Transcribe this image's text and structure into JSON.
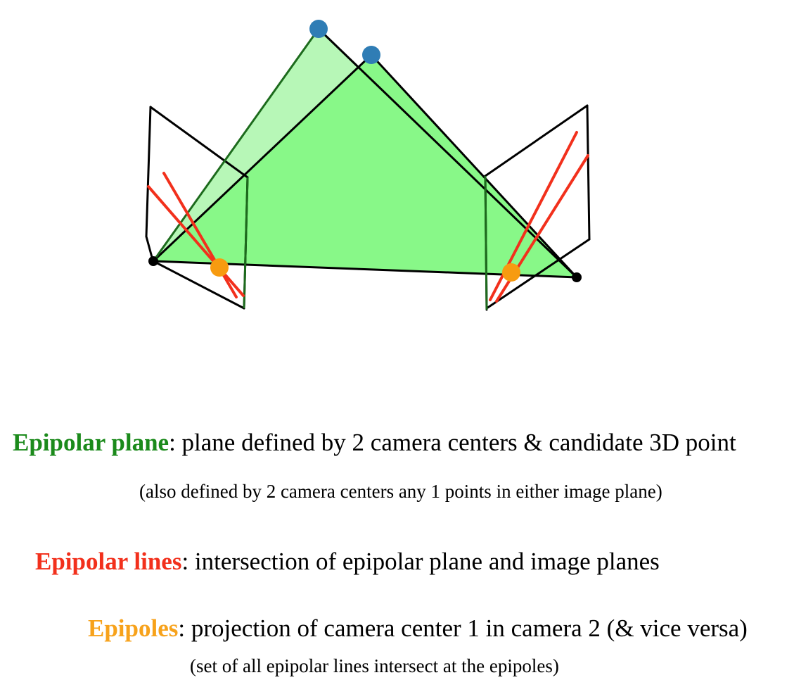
{
  "colors": {
    "plane_fill_back": "#b7f7b7",
    "plane_fill_front": "#88f888",
    "frame_line": "#000000",
    "plane_edge": "#1d6b1d",
    "epipolar_line": "#f2301c",
    "epipole": "#f79b10",
    "point_3d": "#2f7db5",
    "camera_center": "#000000",
    "term_plane": "#1b8a1b",
    "term_lines": "#f2301c",
    "term_poles": "#f7a21b"
  },
  "diagram": {
    "points_3d": [
      "point-3d-a",
      "point-3d-b"
    ],
    "camera_centers": [
      "camera-center-1",
      "camera-center-2"
    ],
    "epipoles": [
      "epipole-1",
      "epipole-2"
    ]
  },
  "definitions": {
    "plane": {
      "term": "Epipolar plane",
      "text": ": plane defined by 2 camera centers & candidate 3D point",
      "note": "(also defined by 2 camera centers any 1 points in either image plane)"
    },
    "lines": {
      "term": "Epipolar lines",
      "text": ": intersection of epipolar plane and image planes"
    },
    "poles": {
      "term": "Epipoles",
      "text": ": projection of camera center 1 in camera 2 (& vice versa)",
      "note": "(set of all epipolar lines intersect at the epipoles)"
    }
  }
}
